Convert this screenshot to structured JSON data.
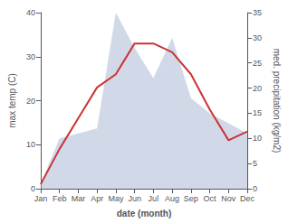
{
  "chart_data": {
    "type": "line",
    "xlabel": "date (month)",
    "ylabel": "max temp (C)",
    "y2label": "med. precipitation (kg/m2)",
    "categories": [
      "Jan",
      "Feb",
      "Mar",
      "Apr",
      "May",
      "Jun",
      "Jul",
      "Aug",
      "Sep",
      "Oct",
      "Nov",
      "Dec"
    ],
    "series": [
      {
        "type": "area",
        "axis": "y2",
        "color": "#99aacc",
        "values": [
          1,
          10,
          11,
          12,
          35,
          28,
          22,
          30,
          18,
          15,
          13,
          11
        ]
      },
      {
        "type": "line",
        "color": "#cc3333",
        "values": [
          1,
          9,
          16,
          23,
          26,
          33,
          33,
          31,
          26,
          18,
          11,
          13
        ]
      }
    ],
    "ylim": [
      0,
      40
    ],
    "yticks": [
      0,
      10,
      20,
      30,
      40
    ],
    "y2lim": [
      0,
      35
    ],
    "y2ticks": [
      0,
      5,
      10,
      15,
      20,
      25,
      30,
      35
    ],
    "grid": false
  }
}
